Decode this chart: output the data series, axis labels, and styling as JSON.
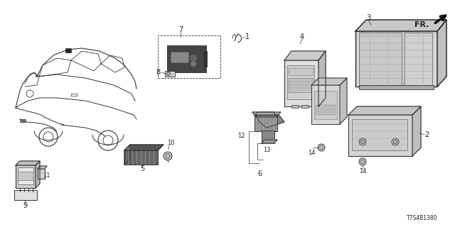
{
  "background_color": "#ffffff",
  "diagram_id": "T7S4B1380",
  "fr_label": "FR.",
  "line_color": "#333333",
  "text_color": "#222222",
  "label_fontsize": 7,
  "small_fontsize": 5.5,
  "fr_fontsize": 8
}
